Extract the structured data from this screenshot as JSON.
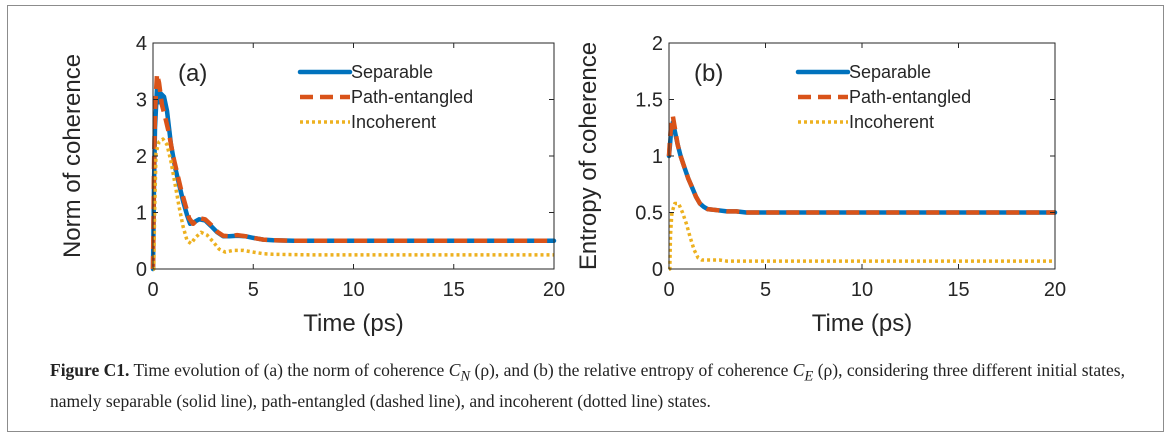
{
  "colors": {
    "separable": "#0072BD",
    "path_entangled": "#D95319",
    "incoherent": "#EDB120",
    "axis": "#262626"
  },
  "chart_data": [
    {
      "type": "line",
      "panel_label": "(a)",
      "xlabel": "Time (ps)",
      "ylabel": "Norm of coherence",
      "xlim": [
        0,
        20
      ],
      "ylim": [
        0,
        4
      ],
      "xticks": [
        0,
        5,
        10,
        15,
        20
      ],
      "yticks": [
        0,
        1,
        2,
        3,
        4
      ],
      "ytick_labels": [
        "0",
        "1",
        "2",
        "3",
        "4"
      ],
      "grid": false,
      "legend": "top-right",
      "series": [
        {
          "name": "Separable",
          "style": "solid",
          "color": "#0072BD",
          "x": [
            0,
            0.05,
            0.1,
            0.2,
            0.3,
            0.4,
            0.55,
            0.7,
            0.9,
            1.1,
            1.3,
            1.5,
            1.7,
            1.85,
            2.0,
            2.3,
            2.6,
            2.9,
            3.2,
            3.5,
            3.8,
            4.2,
            4.6,
            5.0,
            5.5,
            6,
            7,
            8,
            10,
            12,
            14,
            16,
            18,
            20
          ],
          "y": [
            0.0,
            1.5,
            2.5,
            3.2,
            2.95,
            3.1,
            3.05,
            2.8,
            2.2,
            1.8,
            1.5,
            1.2,
            0.95,
            0.8,
            0.82,
            0.88,
            0.86,
            0.76,
            0.65,
            0.58,
            0.58,
            0.59,
            0.58,
            0.55,
            0.52,
            0.51,
            0.5,
            0.5,
            0.5,
            0.5,
            0.5,
            0.5,
            0.5,
            0.5
          ]
        },
        {
          "name": "Path-entangled",
          "style": "dashed",
          "color": "#D95319",
          "x": [
            0,
            0.05,
            0.1,
            0.2,
            0.3,
            0.45,
            0.6,
            0.8,
            1.0,
            1.2,
            1.4,
            1.6,
            1.8,
            2.0,
            2.3,
            2.6,
            2.9,
            3.2,
            3.5,
            3.8,
            4.2,
            4.6,
            5.0,
            5.5,
            6,
            7,
            8,
            10,
            12,
            14,
            16,
            18,
            20
          ],
          "y": [
            0.0,
            1.8,
            2.8,
            3.45,
            3.3,
            2.9,
            2.7,
            2.4,
            2.0,
            1.7,
            1.4,
            1.15,
            0.9,
            0.8,
            0.9,
            0.88,
            0.78,
            0.66,
            0.59,
            0.58,
            0.6,
            0.58,
            0.55,
            0.52,
            0.51,
            0.5,
            0.5,
            0.5,
            0.5,
            0.5,
            0.5,
            0.5,
            0.5
          ]
        },
        {
          "name": "Incoherent",
          "style": "dotted",
          "color": "#EDB120",
          "x": [
            0,
            0.04,
            0.08,
            0.15,
            0.3,
            0.5,
            0.7,
            0.9,
            1.1,
            1.3,
            1.5,
            1.7,
            1.9,
            2.1,
            2.4,
            2.7,
            3.0,
            3.3,
            3.6,
            4.0,
            4.5,
            5.0,
            5.5,
            6,
            8,
            10,
            12,
            14,
            16,
            18,
            20
          ],
          "y": [
            0.0,
            0.0,
            1.0,
            2.05,
            2.25,
            2.3,
            2.2,
            1.9,
            1.5,
            1.1,
            0.75,
            0.5,
            0.45,
            0.55,
            0.65,
            0.6,
            0.48,
            0.35,
            0.3,
            0.33,
            0.33,
            0.3,
            0.27,
            0.26,
            0.25,
            0.25,
            0.25,
            0.25,
            0.25,
            0.25,
            0.25
          ]
        }
      ]
    },
    {
      "type": "line",
      "panel_label": "(b)",
      "xlabel": "Time (ps)",
      "ylabel": "Entropy of coherence",
      "xlim": [
        0,
        20
      ],
      "ylim": [
        0,
        2
      ],
      "xticks": [
        0,
        5,
        10,
        15,
        20
      ],
      "yticks": [
        0,
        0.5,
        1,
        1.5,
        2
      ],
      "ytick_labels": [
        "0",
        "0.5",
        "1",
        "1.5",
        "2"
      ],
      "grid": false,
      "legend": "top-right",
      "series": [
        {
          "name": "Separable",
          "style": "solid",
          "color": "#0072BD",
          "x": [
            0,
            0.05,
            0.1,
            0.2,
            0.3,
            0.45,
            0.6,
            0.8,
            1.0,
            1.2,
            1.4,
            1.6,
            1.8,
            2.0,
            2.5,
            3.0,
            3.5,
            4,
            5,
            6,
            8,
            10,
            12,
            14,
            16,
            18,
            20
          ],
          "y": [
            1.0,
            1.1,
            1.2,
            1.3,
            1.22,
            1.1,
            1.0,
            0.9,
            0.8,
            0.72,
            0.64,
            0.58,
            0.55,
            0.53,
            0.52,
            0.51,
            0.51,
            0.5,
            0.5,
            0.5,
            0.5,
            0.5,
            0.5,
            0.5,
            0.5,
            0.5,
            0.5
          ]
        },
        {
          "name": "Path-entangled",
          "style": "dashed",
          "color": "#D95319",
          "x": [
            0,
            0.05,
            0.1,
            0.2,
            0.3,
            0.45,
            0.6,
            0.8,
            1.0,
            1.2,
            1.4,
            1.6,
            1.8,
            2.0,
            2.5,
            3.0,
            3.5,
            4,
            5,
            6,
            8,
            10,
            12,
            14,
            16,
            18,
            20
          ],
          "y": [
            1.0,
            1.15,
            1.25,
            1.35,
            1.25,
            1.1,
            1.0,
            0.9,
            0.8,
            0.72,
            0.64,
            0.58,
            0.55,
            0.53,
            0.52,
            0.51,
            0.51,
            0.5,
            0.5,
            0.5,
            0.5,
            0.5,
            0.5,
            0.5,
            0.5,
            0.5,
            0.5
          ]
        },
        {
          "name": "Incoherent",
          "style": "dotted",
          "color": "#EDB120",
          "x": [
            0,
            0.04,
            0.08,
            0.15,
            0.3,
            0.5,
            0.7,
            0.9,
            1.1,
            1.3,
            1.5,
            1.7,
            1.9,
            2.2,
            2.6,
            3.0,
            4,
            6,
            8,
            10,
            12,
            14,
            16,
            18,
            20
          ],
          "y": [
            0.0,
            0.0,
            0.3,
            0.5,
            0.58,
            0.58,
            0.5,
            0.4,
            0.28,
            0.17,
            0.1,
            0.08,
            0.08,
            0.08,
            0.08,
            0.07,
            0.07,
            0.07,
            0.07,
            0.07,
            0.07,
            0.07,
            0.07,
            0.07,
            0.07
          ]
        }
      ]
    }
  ],
  "caption": {
    "label": "Figure C1.",
    "text_1": " Time evolution of (a) the norm of coherence ",
    "cn_symbol": "C",
    "cn_sub": "N",
    "rho_1": " (ρ)",
    "text_2": ", and (b) the relative entropy of coherence ",
    "ce_symbol": "C",
    "ce_sub": "E",
    "rho_2": " (ρ)",
    "text_3": ", considering three different initial states, namely separable (solid line), path-entangled (dashed line), and incoherent (dotted line) states."
  }
}
